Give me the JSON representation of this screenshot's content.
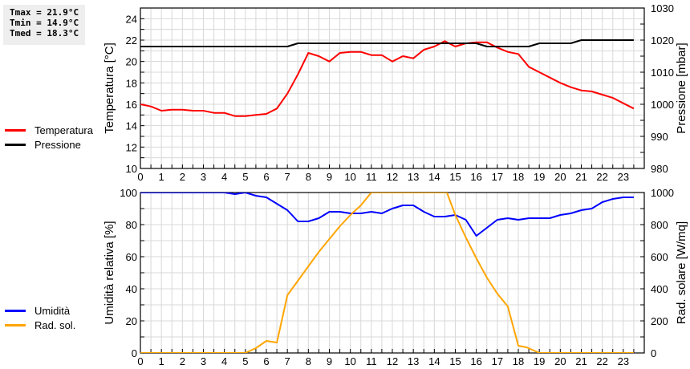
{
  "stats": {
    "tmax": "Tmax = 21.9°C",
    "tmin": "Tmin = 14.9°C",
    "tmed": "Tmed = 18.3°C"
  },
  "legend_top": [
    {
      "label": "Temperatura",
      "color": "#ff0000"
    },
    {
      "label": "Pressione",
      "color": "#000000"
    }
  ],
  "legend_bottom": [
    {
      "label": "Umidità",
      "color": "#0000ff"
    },
    {
      "label": "Rad. sol.",
      "color": "#ffa500"
    }
  ],
  "chart_data": [
    {
      "type": "line",
      "title": "",
      "xlabel": "",
      "ylabel": "Temperatura [°C]",
      "y2label": "Pressione [mbar]",
      "x_ticks": [
        "0",
        "1",
        "2",
        "3",
        "4",
        "5",
        "6",
        "7",
        "8",
        "9",
        "10",
        "11",
        "12",
        "13",
        "14",
        "15",
        "16",
        "17",
        "18",
        "19",
        "20",
        "21",
        "22",
        "23"
      ],
      "ylim": [
        10,
        25
      ],
      "y_ticks": [
        "10",
        "12",
        "14",
        "16",
        "18",
        "20",
        "22",
        "24"
      ],
      "y2lim": [
        980,
        1030
      ],
      "y2_ticks": [
        "980",
        "990",
        "1000",
        "1010",
        "1020",
        "1030"
      ],
      "grid": true,
      "legend_position": "left",
      "series": [
        {
          "name": "Temperatura",
          "axis": "left",
          "color": "#ff0000",
          "x": [
            0,
            0.5,
            1,
            1.5,
            2,
            2.5,
            3,
            3.5,
            4,
            4.5,
            5,
            5.5,
            6,
            6.5,
            7,
            7.5,
            8,
            8.5,
            9,
            9.5,
            10,
            10.5,
            11,
            11.5,
            12,
            12.5,
            13,
            13.5,
            14,
            14.5,
            15,
            15.5,
            16,
            16.5,
            17,
            17.5,
            18,
            18.5,
            19,
            19.5,
            20,
            20.5,
            21,
            21.5,
            22,
            22.5,
            23,
            23.5
          ],
          "values": [
            16.0,
            15.8,
            15.4,
            15.5,
            15.5,
            15.4,
            15.4,
            15.2,
            15.2,
            14.9,
            14.9,
            15.0,
            15.1,
            15.6,
            17.0,
            18.8,
            20.8,
            20.5,
            20.0,
            20.8,
            20.9,
            20.9,
            20.6,
            20.6,
            20.0,
            20.5,
            20.3,
            21.1,
            21.4,
            21.9,
            21.4,
            21.7,
            21.8,
            21.8,
            21.3,
            20.9,
            20.7,
            19.5,
            19.0,
            18.5,
            18.0,
            17.6,
            17.3,
            17.2,
            16.9,
            16.6,
            16.1,
            15.6
          ]
        },
        {
          "name": "Pressione",
          "axis": "right",
          "color": "#000000",
          "x": [
            0,
            1,
            2,
            3,
            4,
            5,
            6,
            7,
            7.5,
            8,
            9,
            10,
            11,
            12,
            13,
            14,
            15,
            16,
            16.5,
            17,
            18,
            18.5,
            19,
            20,
            20.5,
            21,
            22,
            23,
            23.5
          ],
          "values": [
            1018,
            1018,
            1018,
            1018,
            1018,
            1018,
            1018,
            1018,
            1019,
            1019,
            1019,
            1019,
            1019,
            1019,
            1019,
            1019,
            1019,
            1019,
            1018,
            1018,
            1018,
            1018,
            1019,
            1019,
            1019,
            1020,
            1020,
            1020,
            1020
          ]
        }
      ]
    },
    {
      "type": "line",
      "title": "",
      "xlabel": "",
      "ylabel": "Umidità relativa [%]",
      "y2label": "Rad. solare [W/mq]",
      "x_ticks": [
        "0",
        "1",
        "2",
        "3",
        "4",
        "5",
        "6",
        "7",
        "8",
        "9",
        "10",
        "11",
        "12",
        "13",
        "14",
        "15",
        "16",
        "17",
        "18",
        "19",
        "20",
        "21",
        "22",
        "23"
      ],
      "ylim": [
        0,
        100
      ],
      "y_ticks": [
        "0",
        "20",
        "40",
        "60",
        "80",
        "100"
      ],
      "y2lim": [
        0,
        1000
      ],
      "y2_ticks": [
        "0",
        "200",
        "400",
        "600",
        "800",
        "1000"
      ],
      "grid": true,
      "legend_position": "left",
      "series": [
        {
          "name": "Umidità",
          "axis": "left",
          "color": "#0000ff",
          "x": [
            0,
            1,
            2,
            3,
            4,
            4.5,
            5,
            5.5,
            6,
            6.5,
            7,
            7.5,
            8,
            8.5,
            9,
            9.5,
            10,
            10.5,
            11,
            11.5,
            12,
            12.5,
            13,
            13.5,
            14,
            14.5,
            15,
            15.5,
            16,
            16.5,
            17,
            17.5,
            18,
            18.5,
            19,
            19.5,
            20,
            20.5,
            21,
            21.5,
            22,
            22.5,
            23,
            23.5
          ],
          "values": [
            100,
            100,
            100,
            100,
            100,
            99,
            100,
            98,
            97,
            93,
            89,
            82,
            82,
            84,
            88,
            88,
            87,
            87,
            88,
            87,
            90,
            92,
            92,
            88,
            85,
            85,
            86,
            83,
            73,
            78,
            83,
            84,
            83,
            84,
            84,
            84,
            86,
            87,
            89,
            90,
            94,
            96,
            97,
            97
          ]
        },
        {
          "name": "Rad. sol.",
          "axis": "right",
          "color": "#ffa500",
          "x": [
            0,
            1,
            2,
            3,
            4,
            5,
            5.5,
            6,
            6.5,
            7,
            7.5,
            8,
            8.5,
            9,
            9.5,
            10,
            10.5,
            11,
            12,
            13,
            14,
            14.6,
            15,
            15.5,
            16,
            16.5,
            17,
            17.5,
            18,
            18.4,
            19,
            19.5,
            20,
            21,
            22,
            23,
            23.5
          ],
          "values": [
            0,
            0,
            0,
            0,
            0,
            0,
            30,
            75,
            65,
            360,
            450,
            540,
            630,
            710,
            790,
            860,
            920,
            1000,
            1000,
            1000,
            1000,
            1000,
            860,
            720,
            590,
            470,
            370,
            290,
            45,
            35,
            0,
            0,
            0,
            0,
            0,
            0,
            0
          ]
        }
      ]
    }
  ]
}
